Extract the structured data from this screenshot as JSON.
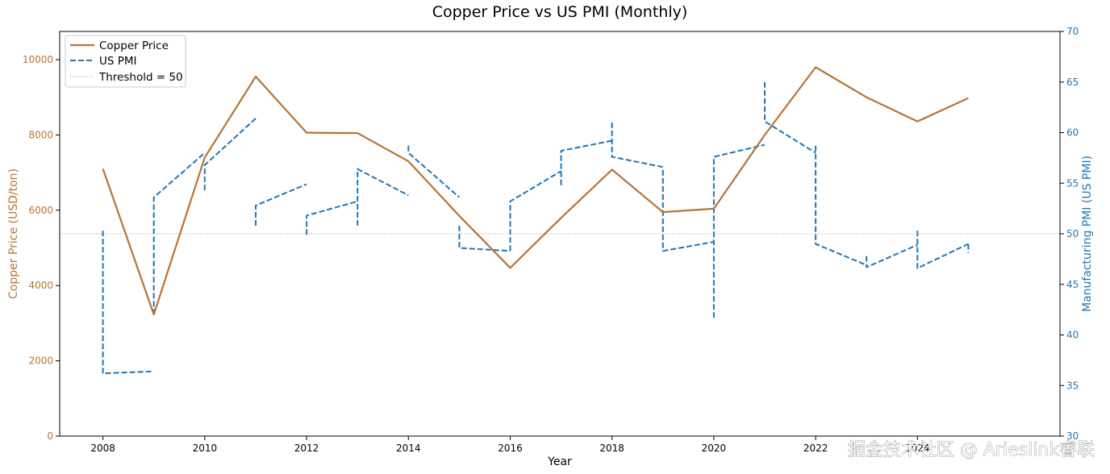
{
  "chart_data": {
    "type": "line",
    "title": "Copper Price vs US PMI (Monthly)",
    "xlabel": "Year",
    "ylabel_left": "Copper Price (USD/ton)",
    "ylabel_right": "Manufacturing PMI (US PMI)",
    "xlim": [
      2007.15,
      2026.8
    ],
    "x_ticks": [
      2008,
      2010,
      2012,
      2014,
      2016,
      2018,
      2020,
      2022,
      2024
    ],
    "ylim_left": [
      0,
      10750
    ],
    "y_ticks_left": [
      0,
      2000,
      4000,
      6000,
      8000,
      10000
    ],
    "ylim_right": [
      30,
      70
    ],
    "y_ticks_right": [
      30,
      35,
      40,
      45,
      50,
      55,
      60,
      65,
      70
    ],
    "colors": {
      "copper": "#b87333",
      "pmi": "#1f77b4",
      "threshold": "#999999",
      "left_axis": "#b87333",
      "right_axis": "#1f77b4"
    },
    "legend_position": "upper-left",
    "series": [
      {
        "name": "Copper Price",
        "axis": "left",
        "style": "solid",
        "x": [
          2008,
          2009,
          2010,
          2011,
          2012,
          2013,
          2014,
          2015,
          2016,
          2017,
          2018,
          2019,
          2020,
          2021,
          2022,
          2023,
          2024,
          2025
        ],
        "values": [
          7100,
          3230,
          7400,
          9550,
          8060,
          8050,
          7300,
          5850,
          4470,
          5800,
          7080,
          5950,
          6040,
          8000,
          9800,
          9000,
          8360,
          8980
        ]
      },
      {
        "name": "US PMI",
        "axis": "right",
        "style": "dashed",
        "segments": [
          {
            "x": [
              2008,
              2008,
              2009
            ],
            "values": [
              50.3,
              36.2,
              36.4
            ]
          },
          {
            "x": [
              2009,
              2009,
              2010
            ],
            "values": [
              42.0,
              53.6,
              58.0
            ]
          },
          {
            "x": [
              2010,
              2010,
              2011
            ],
            "values": [
              54.3,
              56.8,
              61.4
            ]
          },
          {
            "x": [
              2011,
              2011,
              2012
            ],
            "values": [
              50.8,
              52.8,
              54.9
            ]
          },
          {
            "x": [
              2012,
              2012,
              2013
            ],
            "values": [
              49.9,
              51.8,
              53.2
            ]
          },
          {
            "x": [
              2013,
              2013,
              2014
            ],
            "values": [
              50.8,
              56.4,
              53.8
            ]
          },
          {
            "x": [
              2014,
              2014,
              2015
            ],
            "values": [
              58.7,
              58.0,
              53.6
            ]
          },
          {
            "x": [
              2015,
              2015,
              2016
            ],
            "values": [
              50.8,
              48.6,
              48.3
            ]
          },
          {
            "x": [
              2016,
              2016,
              2017
            ],
            "values": [
              48.3,
              53.2,
              56.2
            ]
          },
          {
            "x": [
              2017,
              2017,
              2018
            ],
            "values": [
              54.8,
              58.2,
              59.2
            ]
          },
          {
            "x": [
              2018,
              2018,
              2019
            ],
            "values": [
              61.0,
              57.6,
              56.6
            ]
          },
          {
            "x": [
              2019,
              2019,
              2020
            ],
            "values": [
              56.3,
              48.3,
              49.2
            ]
          },
          {
            "x": [
              2020,
              2020,
              2021
            ],
            "values": [
              41.7,
              57.6,
              58.8
            ]
          },
          {
            "x": [
              2021,
              2021,
              2022
            ],
            "values": [
              65.0,
              61.1,
              58.0
            ]
          },
          {
            "x": [
              2022,
              2022,
              2023
            ],
            "values": [
              58.7,
              49.0,
              46.9
            ]
          },
          {
            "x": [
              2023,
              2023,
              2024
            ],
            "values": [
              47.8,
              46.7,
              48.9
            ]
          },
          {
            "x": [
              2024,
              2024,
              2025
            ],
            "values": [
              50.3,
              46.6,
              49.0
            ]
          },
          {
            "x": [
              2025,
              2025
            ],
            "values": [
              49.0,
              48.1
            ]
          }
        ]
      },
      {
        "name": "Threshold = 50",
        "axis": "right",
        "style": "dotted",
        "values": [
          50
        ]
      }
    ]
  },
  "legend": [
    {
      "label": "Copper Price"
    },
    {
      "label": "US PMI"
    },
    {
      "label": "Threshold = 50"
    }
  ],
  "watermark": "掘金技术社区 @ Arieslink睿联"
}
